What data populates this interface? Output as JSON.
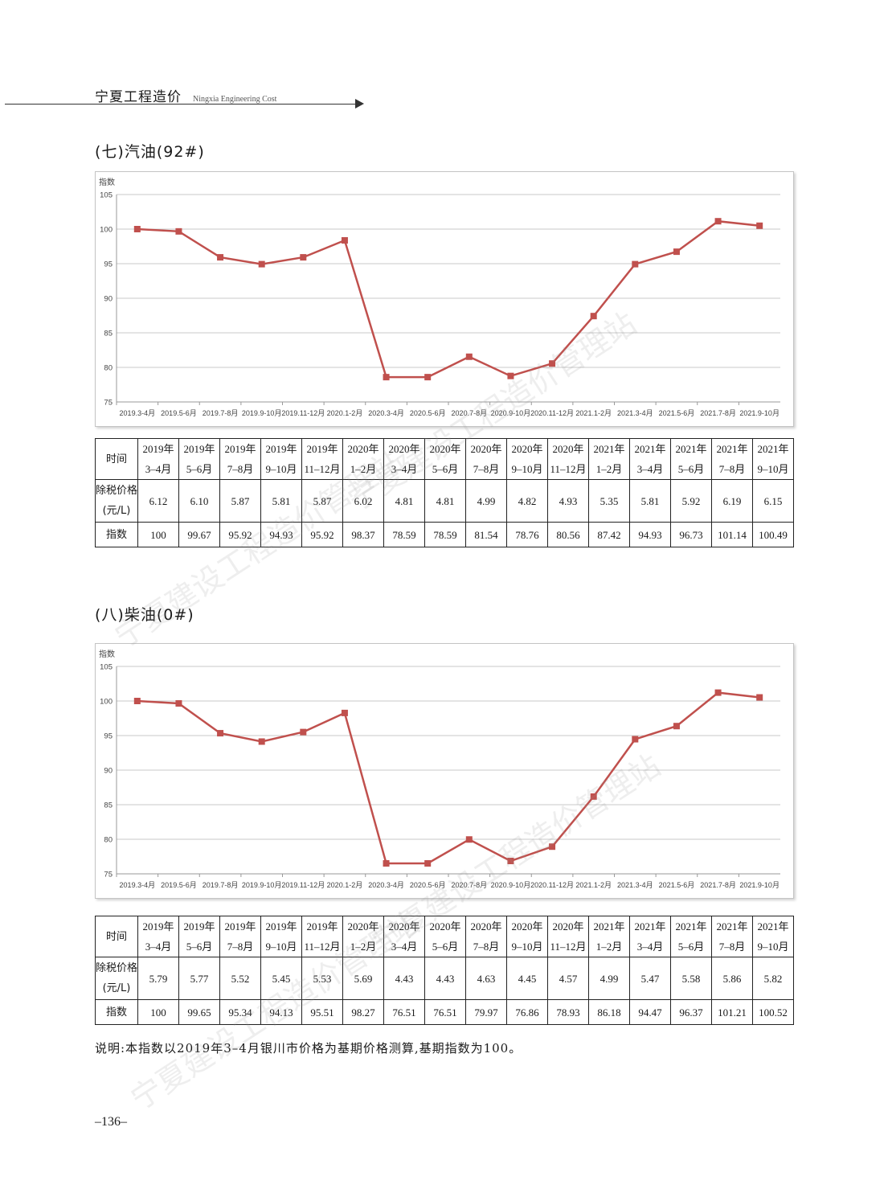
{
  "header": {
    "title_cn": "宁夏工程造价",
    "title_en": "Ningxia Engineering Cost"
  },
  "watermark": "宁夏建设工程造价管理站",
  "sections": [
    {
      "title": "(七)汽油(92#)",
      "chart_data": {
        "type": "line",
        "ylabel": "指数",
        "ylim": [
          75,
          105
        ],
        "yticks": [
          75,
          80,
          85,
          90,
          95,
          100,
          105
        ],
        "categories": [
          "2019.3-4月",
          "2019.5-6月",
          "2019.7-8月",
          "2019.9-10月",
          "2019.11-12月",
          "2020.1-2月",
          "2020.3-4月",
          "2020.5-6月",
          "2020.7-8月",
          "2020.9-10月",
          "2020.11-12月",
          "2021.1-2月",
          "2021.3-4月",
          "2021.5-6月",
          "2021.7-8月",
          "2021.9-10月"
        ],
        "series": [
          {
            "values": [
              100,
              99.67,
              95.92,
              94.93,
              95.92,
              98.37,
              78.59,
              78.59,
              81.54,
              78.76,
              80.56,
              87.42,
              94.93,
              96.73,
              101.14,
              100.49
            ]
          }
        ],
        "grid": true,
        "color": "#c0504d"
      },
      "table": {
        "row_labels": {
          "time": "时间",
          "price_line1": "除税价格",
          "price_line2": "(元/L)",
          "index": "指数"
        },
        "periods": [
          [
            "2019年",
            "3–4月"
          ],
          [
            "2019年",
            "5–6月"
          ],
          [
            "2019年",
            "7–8月"
          ],
          [
            "2019年",
            "9–10月"
          ],
          [
            "2019年",
            "11–12月"
          ],
          [
            "2020年",
            "1–2月"
          ],
          [
            "2020年",
            "3–4月"
          ],
          [
            "2020年",
            "5–6月"
          ],
          [
            "2020年",
            "7–8月"
          ],
          [
            "2020年",
            "9–10月"
          ],
          [
            "2020年",
            "11–12月"
          ],
          [
            "2021年",
            "1–2月"
          ],
          [
            "2021年",
            "3–4月"
          ],
          [
            "2021年",
            "5–6月"
          ],
          [
            "2021年",
            "7–8月"
          ],
          [
            "2021年",
            "9–10月"
          ]
        ],
        "prices": [
          "6.12",
          "6.10",
          "5.87",
          "5.81",
          "5.87",
          "6.02",
          "4.81",
          "4.81",
          "4.99",
          "4.82",
          "4.93",
          "5.35",
          "5.81",
          "5.92",
          "6.19",
          "6.15"
        ],
        "indices": [
          "100",
          "99.67",
          "95.92",
          "94.93",
          "95.92",
          "98.37",
          "78.59",
          "78.59",
          "81.54",
          "78.76",
          "80.56",
          "87.42",
          "94.93",
          "96.73",
          "101.14",
          "100.49"
        ]
      }
    },
    {
      "title": "(八)柴油(0#)",
      "chart_data": {
        "type": "line",
        "ylabel": "指数",
        "ylim": [
          75,
          105
        ],
        "yticks": [
          75,
          80,
          85,
          90,
          95,
          100,
          105
        ],
        "categories": [
          "2019.3-4月",
          "2019.5-6月",
          "2019.7-8月",
          "2019.9-10月",
          "2019.11-12月",
          "2020.1-2月",
          "2020.3-4月",
          "2020.5-6月",
          "2020.7-8月",
          "2020.9-10月",
          "2020.11-12月",
          "2021.1-2月",
          "2021.3-4月",
          "2021.5-6月",
          "2021.7-8月",
          "2021.9-10月"
        ],
        "series": [
          {
            "values": [
              100,
              99.65,
              95.34,
              94.13,
              95.51,
              98.27,
              76.51,
              76.51,
              79.97,
              76.86,
              78.93,
              86.18,
              94.47,
              96.37,
              101.21,
              100.52
            ]
          }
        ],
        "grid": true,
        "color": "#c0504d"
      },
      "table": {
        "row_labels": {
          "time": "时间",
          "price_line1": "除税价格",
          "price_line2": "(元/L)",
          "index": "指数"
        },
        "periods": [
          [
            "2019年",
            "3–4月"
          ],
          [
            "2019年",
            "5–6月"
          ],
          [
            "2019年",
            "7–8月"
          ],
          [
            "2019年",
            "9–10月"
          ],
          [
            "2019年",
            "11–12月"
          ],
          [
            "2020年",
            "1–2月"
          ],
          [
            "2020年",
            "3–4月"
          ],
          [
            "2020年",
            "5–6月"
          ],
          [
            "2020年",
            "7–8月"
          ],
          [
            "2020年",
            "9–10月"
          ],
          [
            "2020年",
            "11–12月"
          ],
          [
            "2021年",
            "1–2月"
          ],
          [
            "2021年",
            "3–4月"
          ],
          [
            "2021年",
            "5–6月"
          ],
          [
            "2021年",
            "7–8月"
          ],
          [
            "2021年",
            "9–10月"
          ]
        ],
        "prices": [
          "5.79",
          "5.77",
          "5.52",
          "5.45",
          "5.53",
          "5.69",
          "4.43",
          "4.43",
          "4.63",
          "4.45",
          "4.57",
          "4.99",
          "5.47",
          "5.58",
          "5.86",
          "5.82"
        ],
        "indices": [
          "100",
          "99.65",
          "95.34",
          "94.13",
          "95.51",
          "98.27",
          "76.51",
          "76.51",
          "79.97",
          "76.86",
          "78.93",
          "86.18",
          "94.47",
          "96.37",
          "101.21",
          "100.52"
        ]
      }
    }
  ],
  "note": "说明:本指数以2019年3–4月银川市价格为基期价格测算,基期指数为100。",
  "page_number": "–136–"
}
